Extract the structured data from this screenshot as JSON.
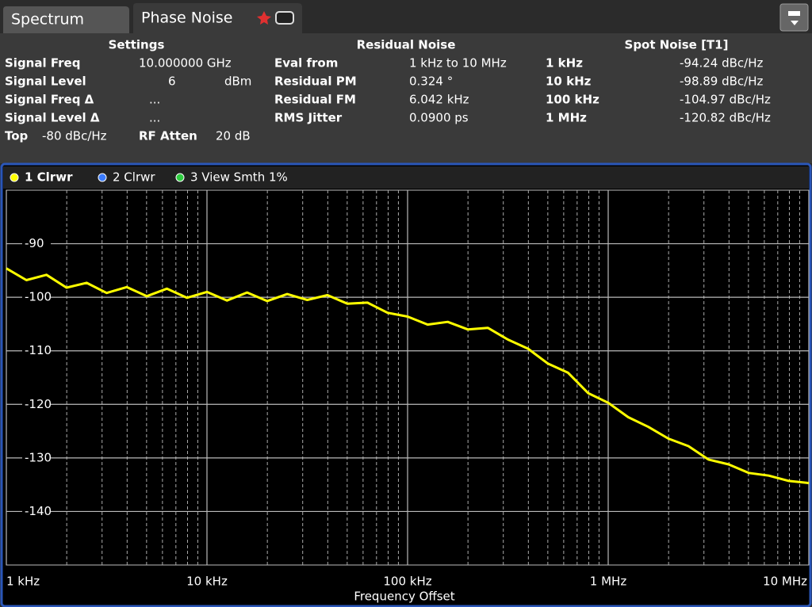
{
  "tabs": [
    "Spectrum",
    "Phase Noise"
  ],
  "settings": {
    "title": "Settings",
    "rows": [
      [
        "Signal Freq",
        "10.000000 GHz"
      ],
      [
        "Signal Level",
        "6",
        "dBm"
      ],
      [
        "Signal Freq Δ",
        "..."
      ],
      [
        "Signal Level Δ",
        "..."
      ]
    ],
    "top": [
      "Top",
      "-80 dBc/Hz"
    ],
    "rf_atten": [
      "RF Atten",
      "20 dB"
    ]
  },
  "residual_noise": {
    "title": "Residual Noise",
    "rows": [
      [
        "Eval from",
        "1 kHz to 10 MHz"
      ],
      [
        "Residual PM",
        "0.324 °"
      ],
      [
        "Residual FM",
        "6.042 kHz"
      ],
      [
        "RMS Jitter",
        "0.0900 ps"
      ]
    ]
  },
  "spot_noise": {
    "title": "Spot Noise [T1]",
    "rows": [
      [
        "1 kHz",
        "-94.24 dBc/Hz"
      ],
      [
        "10 kHz",
        "-98.89 dBc/Hz"
      ],
      [
        "100 kHz",
        "-104.97 dBc/Hz"
      ],
      [
        "1 MHz",
        "-120.82 dBc/Hz"
      ]
    ]
  },
  "chart_data": {
    "type": "line",
    "xlabel": "Frequency Offset",
    "log_x": true,
    "grid": true,
    "xlim": [
      1000,
      10000000
    ],
    "ylim": [
      -150,
      -80
    ],
    "xticks": [
      {
        "value": 1000,
        "label": "1 kHz"
      },
      {
        "value": 10000,
        "label": "10 kHz"
      },
      {
        "value": 100000,
        "label": "100 kHz"
      },
      {
        "value": 1000000,
        "label": "1 MHz"
      },
      {
        "value": 10000000,
        "label": "10 MHz"
      }
    ],
    "minor_xticks": [
      2000,
      3000,
      4000,
      5000,
      6000,
      7000,
      8000,
      9000,
      20000,
      30000,
      40000,
      50000,
      60000,
      70000,
      80000,
      90000,
      200000,
      300000,
      400000,
      500000,
      600000,
      700000,
      800000,
      900000,
      2000000,
      3000000,
      4000000,
      5000000,
      6000000,
      7000000,
      8000000,
      9000000
    ],
    "yticks": [
      -90,
      -100,
      -110,
      -120,
      -130,
      -140
    ],
    "x": [
      1000,
      1259,
      1585,
      1995,
      2512,
      3162,
      3981,
      5012,
      6310,
      7943,
      10000,
      12590,
      15850,
      19950,
      25120,
      31620,
      39810,
      50120,
      63100,
      79430,
      100000,
      125900,
      158500,
      199500,
      251200,
      316200,
      398100,
      501200,
      631000,
      794300,
      1000000,
      1259000,
      1585000,
      1995000,
      2512000,
      3162000,
      3981000,
      5012000,
      6310000,
      7943000,
      10000000
    ],
    "series": [
      {
        "name": "1 Clrwr",
        "color": "#ffff00",
        "values": [
          -94.6,
          -96.8,
          -95.8,
          -98.2,
          -97.3,
          -99.2,
          -98.1,
          -99.8,
          -98.4,
          -100.1,
          -99.0,
          -100.6,
          -99.1,
          -100.7,
          -99.4,
          -100.5,
          -99.6,
          -101.2,
          -101.0,
          -102.9,
          -103.6,
          -105.1,
          -104.6,
          -106.0,
          -105.7,
          -107.9,
          -109.6,
          -112.4,
          -114.1,
          -117.9,
          -119.7,
          -122.4,
          -124.2,
          -126.4,
          -127.8,
          -130.3,
          -131.2,
          -132.8,
          -133.3,
          -134.3,
          -134.7
        ]
      }
    ],
    "other_traces": [
      {
        "name": "2 Clrwr",
        "color": "#3a7bff"
      },
      {
        "name": "3 View Smth 1%",
        "color": "#2ecc40"
      }
    ]
  }
}
